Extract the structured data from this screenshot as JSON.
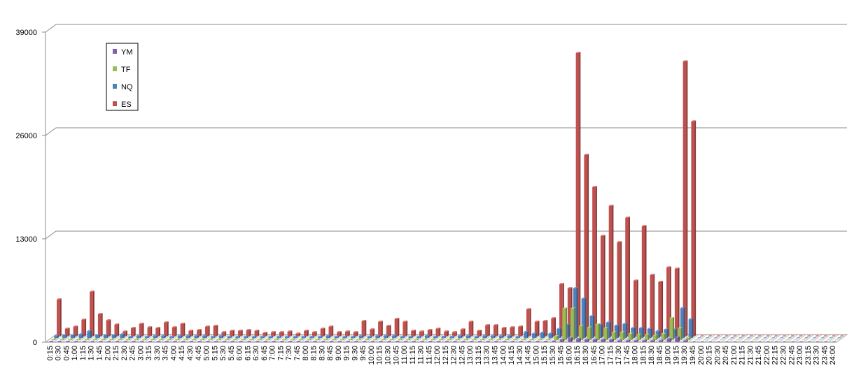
{
  "chart_data": {
    "type": "bar3d",
    "categories": [
      "0:15",
      "0:30",
      "0:45",
      "1:00",
      "1:15",
      "1:30",
      "1:45",
      "2:00",
      "2:15",
      "2:30",
      "2:45",
      "3:00",
      "3:15",
      "3:30",
      "3:45",
      "4:00",
      "4:15",
      "4:30",
      "4:45",
      "5:00",
      "5:15",
      "5:30",
      "5:45",
      "6:00",
      "6:15",
      "6:30",
      "6:45",
      "7:00",
      "7:15",
      "7:30",
      "7:45",
      "8:00",
      "8:15",
      "8:30",
      "8:45",
      "9:00",
      "9:15",
      "9:30",
      "9:45",
      "10:00",
      "10:15",
      "10:30",
      "10:45",
      "11:00",
      "11:15",
      "11:30",
      "11:45",
      "12:00",
      "12:15",
      "12:30",
      "12:45",
      "13:00",
      "13:15",
      "13:30",
      "13:45",
      "14:00",
      "14:15",
      "14:30",
      "14:45",
      "15:00",
      "15:15",
      "15:30",
      "15:45",
      "16:00",
      "16:15",
      "16:30",
      "16:45",
      "17:00",
      "17:15",
      "17:30",
      "17:45",
      "18:00",
      "18:15",
      "18:30",
      "18:45",
      "19:00",
      "19:15",
      "19:30",
      "19:45",
      "20:00",
      "20:15",
      "20:30",
      "20:45",
      "21:00",
      "21:15",
      "21:30",
      "21:45",
      "22:00",
      "22:15",
      "22:30",
      "22:45",
      "23:00",
      "23:15",
      "23:30",
      "23:45",
      "24:00"
    ],
    "series": [
      {
        "name": "YM",
        "color": "#7f62a8",
        "values": [
          50,
          50,
          50,
          50,
          50,
          50,
          50,
          50,
          50,
          50,
          50,
          50,
          50,
          50,
          50,
          50,
          50,
          50,
          50,
          50,
          50,
          50,
          50,
          50,
          50,
          50,
          50,
          50,
          50,
          50,
          50,
          50,
          50,
          50,
          50,
          50,
          50,
          50,
          50,
          50,
          50,
          50,
          50,
          50,
          50,
          50,
          50,
          50,
          50,
          50,
          50,
          50,
          50,
          50,
          50,
          50,
          50,
          50,
          50,
          50,
          50,
          100,
          300,
          500,
          400,
          300,
          300,
          300,
          300,
          200,
          200,
          200,
          200,
          200,
          200,
          400,
          600,
          200,
          0,
          0,
          0,
          0,
          0,
          0,
          0,
          0,
          0,
          0,
          0,
          0,
          0,
          0,
          0,
          0,
          0,
          0
        ]
      },
      {
        "name": "TF",
        "color": "#9bbb59",
        "values": [
          100,
          100,
          100,
          100,
          100,
          100,
          100,
          100,
          100,
          100,
          100,
          100,
          100,
          100,
          100,
          100,
          100,
          100,
          100,
          100,
          100,
          100,
          100,
          100,
          100,
          100,
          100,
          100,
          100,
          100,
          100,
          100,
          100,
          100,
          100,
          100,
          100,
          100,
          100,
          100,
          100,
          100,
          100,
          100,
          100,
          100,
          100,
          100,
          100,
          100,
          100,
          100,
          100,
          100,
          100,
          100,
          100,
          100,
          100,
          100,
          100,
          500,
          4000,
          4000,
          1800,
          1600,
          2000,
          1500,
          1000,
          1000,
          800,
          700,
          700,
          600,
          800,
          2800,
          1500,
          300,
          0,
          0,
          0,
          0,
          0,
          0,
          0,
          0,
          0,
          0,
          0,
          0,
          0,
          0,
          0,
          0,
          0,
          0
        ]
      },
      {
        "name": "NQ",
        "color": "#4f81bd",
        "values": [
          300,
          400,
          400,
          500,
          900,
          400,
          400,
          400,
          500,
          200,
          300,
          200,
          300,
          300,
          200,
          300,
          300,
          300,
          300,
          200,
          300,
          200,
          200,
          200,
          200,
          200,
          200,
          200,
          200,
          200,
          200,
          200,
          200,
          300,
          200,
          200,
          200,
          300,
          200,
          300,
          300,
          300,
          200,
          200,
          200,
          300,
          200,
          200,
          200,
          300,
          300,
          200,
          300,
          300,
          300,
          300,
          200,
          800,
          600,
          700,
          600,
          1200,
          1700,
          6300,
          5000,
          2800,
          1700,
          2000,
          1600,
          1800,
          1300,
          1300,
          1200,
          900,
          1100,
          1100,
          3800,
          2400,
          0,
          0,
          0,
          0,
          0,
          0,
          0,
          0,
          0,
          0,
          0,
          0,
          0,
          0,
          0,
          0,
          0,
          0
        ]
      },
      {
        "name": "ES",
        "color": "#c0504d",
        "values": [
          4650,
          970,
          1230,
          2100,
          5620,
          2810,
          2020,
          1490,
          610,
          1050,
          1580,
          1140,
          1050,
          1760,
          1140,
          1580,
          700,
          790,
          1230,
          1320,
          530,
          700,
          700,
          790,
          700,
          440,
          530,
          530,
          610,
          350,
          700,
          530,
          970,
          1230,
          530,
          610,
          530,
          1930,
          880,
          1840,
          1320,
          2200,
          1840,
          700,
          610,
          790,
          970,
          610,
          530,
          880,
          1840,
          700,
          1400,
          1400,
          1050,
          1140,
          1230,
          3420,
          1840,
          1930,
          2280,
          6590,
          6060,
          35650,
          22830,
          18790,
          12640,
          16420,
          11850,
          14930,
          7020,
          13870,
          7730,
          6850,
          8690,
          8520,
          34590,
          27040,
          0,
          0,
          0,
          0,
          0,
          0,
          0,
          0,
          0,
          0,
          0,
          0,
          0,
          0,
          0,
          0,
          0,
          0
        ]
      }
    ],
    "ylim": [
      0,
      39000
    ],
    "yticks": [
      0,
      13000,
      26000,
      39000
    ],
    "grid": true,
    "legend": "upper-left"
  }
}
